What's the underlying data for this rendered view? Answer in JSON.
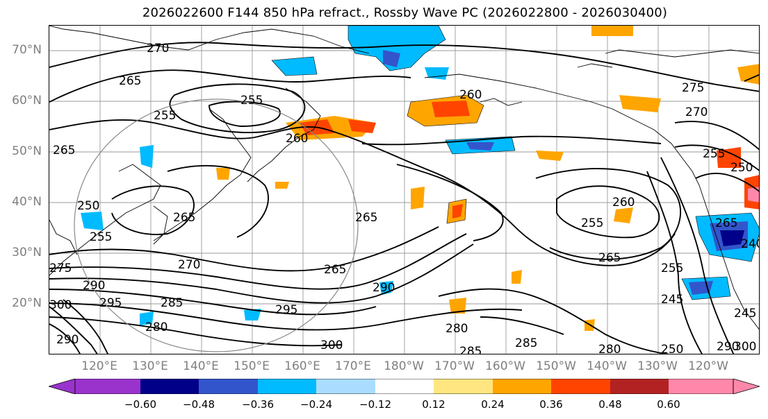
{
  "title": "2026022600 F144 850 hPa refract., Rossby Wave PC (2026022800 - 2026030400)",
  "lat_labels": [
    "70°N",
    "60°N",
    "50°N",
    "40°N",
    "30°N",
    "20°N"
  ],
  "lon_labels": [
    "120°E",
    "130°E",
    "140°E",
    "150°E",
    "160°E",
    "170°E",
    "180°W",
    "170°W",
    "160°W",
    "150°W",
    "140°W",
    "130°W",
    "120°W"
  ],
  "contour_labels": [
    "270",
    "265",
    "255",
    "260",
    "265",
    "260",
    "275",
    "270",
    "255",
    "250",
    "265",
    "255",
    "260",
    "250",
    "265",
    "255",
    "265",
    "255",
    "270",
    "275",
    "290",
    "295",
    "300",
    "265",
    "290",
    "295",
    "280",
    "285",
    "280",
    "290",
    "300",
    "285",
    "265",
    "240",
    "255",
    "245",
    "245",
    "250",
    "280",
    "285",
    "290",
    "300"
  ],
  "colorbar": {
    "ticks": [
      "−0.60",
      "−0.48",
      "−0.36",
      "−0.24",
      "−0.12",
      "0.12",
      "0.24",
      "0.36",
      "0.48",
      "0.60"
    ],
    "colors": [
      "#9933cc",
      "#000088",
      "#3355cc",
      "#00bbff",
      "#aaddff",
      "#ffffff",
      "#ffe680",
      "#ffa500",
      "#ff4400",
      "#b22222",
      "#ff88aa"
    ]
  },
  "colors": {
    "grid": "#999999",
    "contour": "#000000",
    "axis_label": "#7f7f7f",
    "circle": "#888888"
  }
}
